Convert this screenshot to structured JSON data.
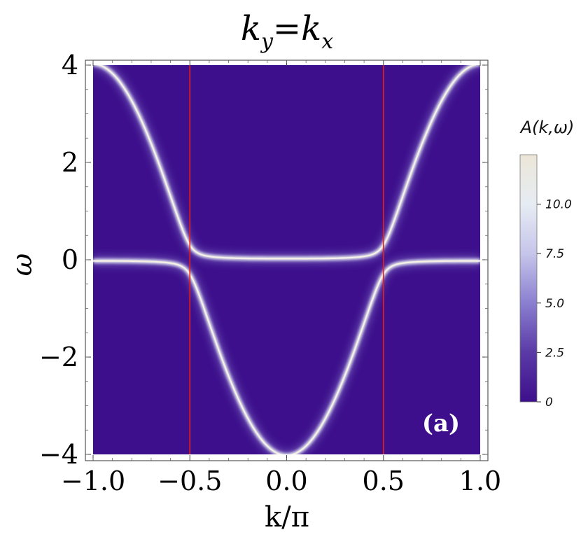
{
  "chart_data": {
    "type": "heatmap",
    "title": "k_y = k_x",
    "title_parts": {
      "k1": "k",
      "sub1": "y",
      "eq": "=",
      "k2": "k",
      "sub2": "x"
    },
    "xlabel": "k/π",
    "ylabel": "ω",
    "xlim": [
      -1.0,
      1.0
    ],
    "ylim": [
      -4,
      4
    ],
    "x_ticks": [
      -1.0,
      -0.5,
      0.0,
      0.5,
      1.0
    ],
    "x_tick_labels": [
      "−1.0",
      "−0.5",
      "0.0",
      "0.5",
      "1.0"
    ],
    "y_ticks": [
      -4,
      -2,
      0,
      2,
      4
    ],
    "y_tick_labels": [
      "−4",
      "−2",
      "0",
      "2",
      "4"
    ],
    "dispersion": "omega = -4 cos(pi k), hybridization gap near omega = 0 at k = ±0.5",
    "band_peak_value": 12,
    "gap_half_width": 0.3,
    "vertical_lines": [
      {
        "x": -0.5,
        "color": "#e8201c"
      },
      {
        "x": 0.5,
        "color": "#e8201c"
      }
    ],
    "panel_label": "(a)",
    "colorbar": {
      "title": "A(k,ω)",
      "min": 0,
      "max": 12.5,
      "ticks": [
        0,
        2.5,
        5.0,
        7.5,
        10.0
      ],
      "tick_labels": [
        "0",
        "2.5",
        "5.0",
        "7.5",
        "10.0"
      ],
      "colors": [
        "#3d0f8c",
        "#5a3aa6",
        "#8a7fd0",
        "#c6c5ea",
        "#e6ecf3",
        "#ece6d8"
      ]
    },
    "background_color": "#3d0f8c"
  }
}
